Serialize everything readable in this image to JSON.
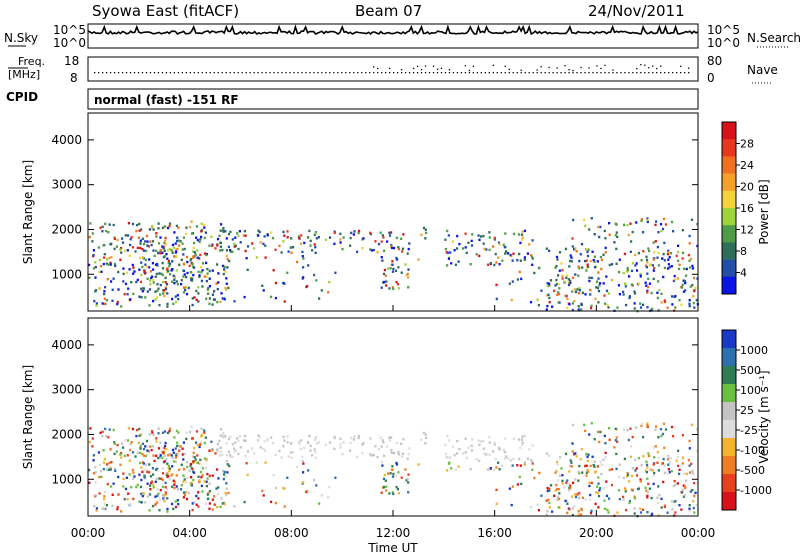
{
  "header": {
    "station": "Syowa East (fitACF)",
    "beam": "Beam 07",
    "date": "24/Nov/2011"
  },
  "sky_panel": {
    "left_label": "N.Sky",
    "right_label": "N.Search",
    "left_ticks": [
      "10^5",
      "10^0"
    ],
    "right_ticks": [
      "10^5",
      "10^0"
    ]
  },
  "freq_panel": {
    "left_label_line1": "Freq.",
    "left_label_line2": "[MHz]",
    "right_label": "Nave",
    "left_ticks": [
      "18",
      "8"
    ],
    "right_ticks": [
      "80",
      "0"
    ]
  },
  "cpid": {
    "label": "CPID",
    "value": "normal (fast) -151 RF"
  },
  "colors": {
    "power_scale": [
      "#0a14e8",
      "#234ea8",
      "#2f6f5a",
      "#4f9c47",
      "#9fd33a",
      "#f4d23a",
      "#f4a02a",
      "#f07020",
      "#e8361f",
      "#d8101a"
    ],
    "velocity_scale": [
      "#1a38c8",
      "#2e6fae",
      "#2f7d52",
      "#6ac13f",
      "#c4c4c4",
      "#dcdcdc",
      "#f2b42e",
      "#ef7d22",
      "#e6401f",
      "#d8101a"
    ]
  },
  "chart_data": [
    {
      "type": "heatmap",
      "name": "power",
      "xlabel": "",
      "ylabel": "Slant Range [km]",
      "x_range_hours": [
        0,
        24
      ],
      "ylim": [
        180,
        4600
      ],
      "yticks": [
        "1000",
        "2000",
        "3000",
        "4000"
      ],
      "ytick_values": [
        1000,
        2000,
        3000,
        4000
      ],
      "colorbar_label": "Power [dB]",
      "colorbar_ticks": [
        "4",
        "8",
        "12",
        "16",
        "20",
        "24",
        "28"
      ],
      "colorbar_range": [
        0,
        30
      ]
    },
    {
      "type": "heatmap",
      "name": "velocity",
      "xlabel": "Time UT",
      "ylabel": "Slant Range [km]",
      "x_range_hours": [
        0,
        24
      ],
      "ylim": [
        180,
        4600
      ],
      "yticks": [
        "1000",
        "2000",
        "3000",
        "4000"
      ],
      "ytick_values": [
        1000,
        2000,
        3000,
        4000
      ],
      "xticks": [
        "00:00",
        "04:00",
        "08:00",
        "12:00",
        "16:00",
        "20:00",
        "00:00"
      ],
      "xtick_values": [
        0,
        4,
        8,
        12,
        16,
        20,
        24
      ],
      "colorbar_label": "Velocity [m s⁻¹]",
      "colorbar_ticks": [
        "1000",
        "500",
        "100",
        "25",
        "-25",
        "-100",
        "-500",
        "-1000"
      ]
    }
  ]
}
